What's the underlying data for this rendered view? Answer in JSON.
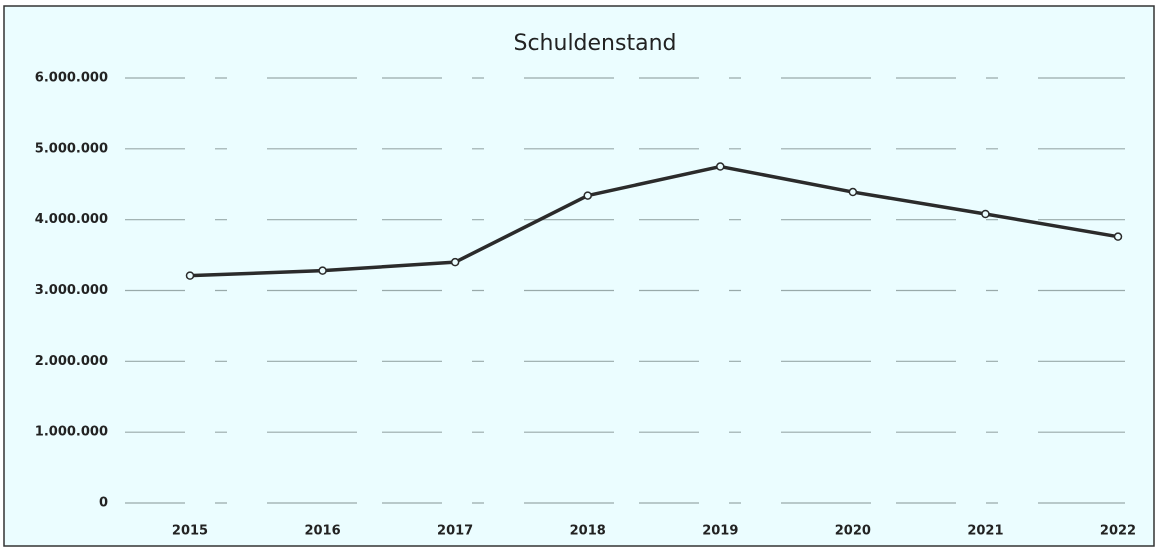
{
  "chart_data": {
    "type": "line",
    "title": "Schuldenstand",
    "categories": [
      "2015",
      "2016",
      "2017",
      "2018",
      "2019",
      "2020",
      "2021",
      "2022"
    ],
    "series": [
      {
        "name": "Schuldenstand",
        "color": "#2b2b2b",
        "values": [
          3210000,
          3280000,
          3400000,
          4340000,
          4750000,
          4390000,
          4080000,
          3760000
        ]
      }
    ],
    "ylim": [
      0,
      6000000
    ],
    "yticks": [
      0,
      {
        "value": 1000000,
        "label": "1.000.000"
      },
      {
        "value": 2000000,
        "label": "2.000.000"
      },
      {
        "value": 3000000,
        "label": "3.000.000"
      },
      {
        "value": 4000000,
        "label": "4.000.000"
      },
      {
        "value": 5000000,
        "label": "5.000.000"
      },
      {
        "value": 6000000,
        "label": "6.000.000"
      }
    ],
    "grid": true
  }
}
